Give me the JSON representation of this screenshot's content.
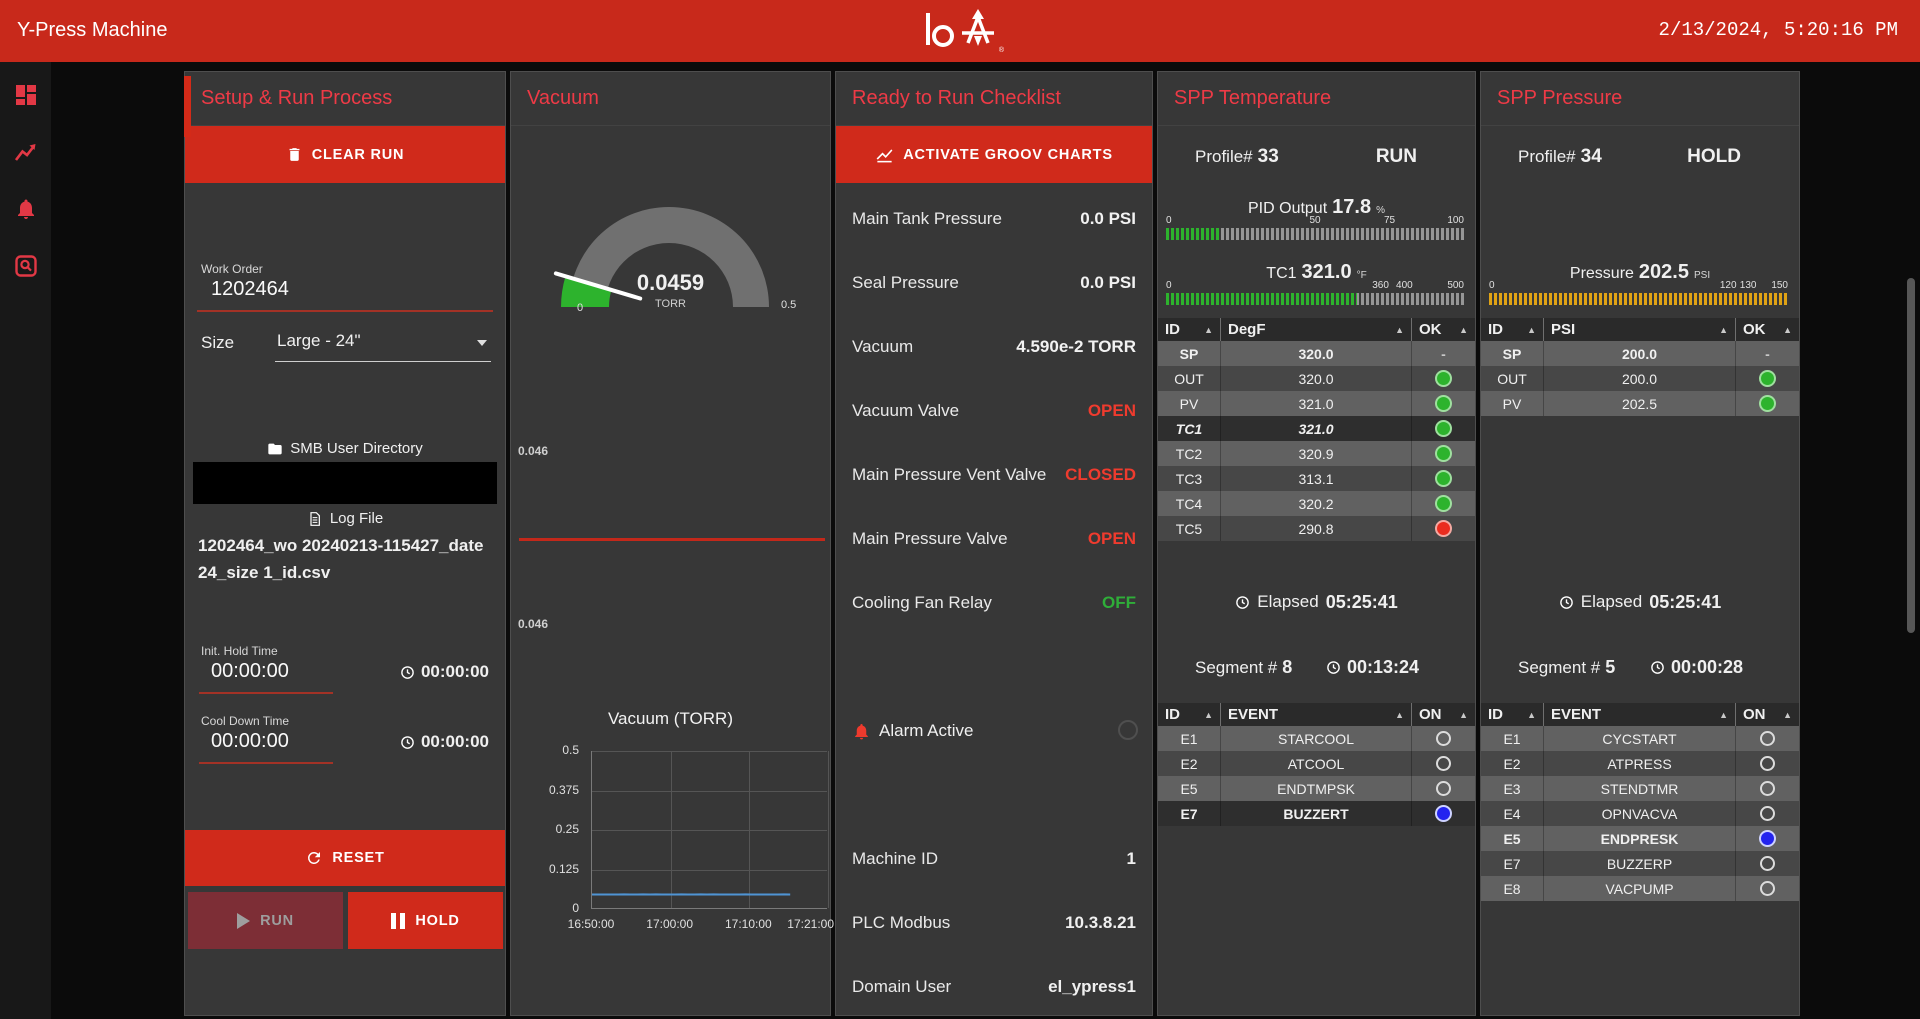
{
  "colors": {
    "header_red": "#c8291b",
    "button_red": "#d02a1b",
    "accent": "#ee3a46",
    "red": "#ef3b2e",
    "green": "#2fae39",
    "white": "#f2f2f2",
    "ok_green": "#2db32d",
    "ok_red": "#ea2c1f",
    "on_blue": "#2323ef",
    "amber": "#dfa215",
    "chart_line": "#4f94d4"
  },
  "header": {
    "title": "Y-Press Machine",
    "logo_text": "Io",
    "reg_mark": "®",
    "time": "2/13/2024, 5:20:16 PM"
  },
  "sidebar": {
    "icons": [
      "pages-grid",
      "trend-chart",
      "alarm-bell",
      "event-log-search"
    ]
  },
  "setup": {
    "title": "Setup & Run Process",
    "clear_run": "CLEAR RUN",
    "work_order_label": "Work Order",
    "work_order": "1202464",
    "size_label": "Size",
    "size_value": "Large - 24\"",
    "smb_label": "SMB User Directory",
    "log_file_label": "Log File",
    "log_file_name": "1202464_wo 20240213-115427_date 24_size 1_id.csv",
    "init_hold_label": "Init. Hold Time",
    "init_hold_value": "00:00:00",
    "init_hold_timer": "00:00:00",
    "cool_down_label": "Cool Down Time",
    "cool_down_value": "00:00:00",
    "cool_down_timer": "00:00:00",
    "reset": "RESET",
    "run": "RUN",
    "hold": "HOLD"
  },
  "vacuum": {
    "title": "Vacuum",
    "gauge": {
      "display": "0.0459",
      "unit": "TORR",
      "value": 0.0459,
      "min_val": 0,
      "max_val": 0.5,
      "min_label": "0",
      "max_label": "0.5"
    },
    "level": {
      "top_label": "0.046",
      "bottom_label": "0.046"
    }
  },
  "chart_data": {
    "type": "line",
    "title": "Vacuum (TORR)",
    "x": [
      "16:50:00",
      "17:00:00",
      "17:10:00",
      "17:21:00"
    ],
    "series": [
      {
        "name": "Vacuum",
        "values": [
          0.046,
          0.046,
          0.046,
          0.0459,
          0.046,
          0.0461,
          0.046,
          0.0459,
          0.0461,
          0.046,
          0.0463,
          0.0458,
          0.046,
          0.046,
          0.0461,
          0.0459,
          0.046,
          0.0463,
          0.0458,
          0.0461,
          0.046,
          0.046,
          0.0459,
          0.046,
          0.0461,
          0.046,
          0.046,
          0.0459,
          0.046,
          0.046,
          0.0461,
          0.046
        ]
      }
    ],
    "ylim": [
      0,
      0.5
    ],
    "yticks": [
      0,
      0.125,
      0.25,
      0.375,
      0.5
    ],
    "grid": true,
    "data_window_frac": 0.84,
    "line_color": "#4f94d4"
  },
  "checklist": {
    "title": "Ready to Run Checklist",
    "button": "ACTIVATE GROOV CHARTS",
    "items": [
      {
        "label": "Main Tank Pressure",
        "value": "0.0 PSI",
        "color": "white"
      },
      {
        "label": "Seal Pressure",
        "value": "0.0 PSI",
        "color": "white"
      },
      {
        "label": "Vacuum",
        "value": "4.590e-2 TORR",
        "color": "white"
      },
      {
        "label": "Vacuum Valve",
        "value": "OPEN",
        "color": "red"
      },
      {
        "label": "Main Pressure Vent Valve",
        "value": "CLOSED",
        "color": "red"
      },
      {
        "label": "Main Pressure Valve",
        "value": "OPEN",
        "color": "red"
      },
      {
        "label": "Cooling Fan Relay",
        "value": "OFF",
        "color": "green"
      }
    ],
    "alarm_label": "Alarm Active",
    "alarm_on": false,
    "info": [
      {
        "label": "Machine ID",
        "value": "1"
      },
      {
        "label": "PLC Modbus",
        "value": "10.3.8.21"
      },
      {
        "label": "Domain User",
        "value": "el_ypress1"
      }
    ]
  },
  "spp_temperature": {
    "title": "SPP Temperature",
    "profile_label": "Profile#",
    "profile": "33",
    "state": "RUN",
    "pid": {
      "label": "PID Output",
      "display": "17.8",
      "unit": "%",
      "value": 17.8,
      "max": 100,
      "ticks": [
        0,
        50,
        75,
        100
      ],
      "color": "green"
    },
    "tc1": {
      "label": "TC1",
      "display": "321.0",
      "unit": "°F",
      "value": 321.0,
      "max": 500,
      "ticks": [
        0,
        360,
        400,
        500
      ],
      "color": "green"
    },
    "table": {
      "headers": [
        "ID",
        "DegF",
        "OK"
      ],
      "rows": [
        {
          "id": "SP",
          "value": "320.0",
          "status": "dash",
          "style": "bold"
        },
        {
          "id": "OUT",
          "value": "320.0",
          "status": "green"
        },
        {
          "id": "PV",
          "value": "321.0",
          "status": "green"
        },
        {
          "id": "TC1",
          "value": "321.0",
          "status": "green",
          "style": "bold italic sel"
        },
        {
          "id": "TC2",
          "value": "320.9",
          "status": "green"
        },
        {
          "id": "TC3",
          "value": "313.1",
          "status": "green"
        },
        {
          "id": "TC4",
          "value": "320.2",
          "status": "green"
        },
        {
          "id": "TC5",
          "value": "290.8",
          "status": "red"
        }
      ]
    },
    "elapsed_label": "Elapsed",
    "elapsed": "05:25:41",
    "segment_label": "Segment #",
    "segment": "8",
    "segment_time": "00:13:24",
    "events": {
      "headers": [
        "ID",
        "EVENT",
        "ON"
      ],
      "rows": [
        {
          "id": "E1",
          "event": "STARCOOL",
          "on": false
        },
        {
          "id": "E2",
          "event": "ATCOOL",
          "on": false
        },
        {
          "id": "E5",
          "event": "ENDTMPSK",
          "on": false
        },
        {
          "id": "E7",
          "event": "BUZZERT",
          "on": true,
          "style": "bold sel"
        }
      ]
    }
  },
  "spp_pressure": {
    "title": "SPP Pressure",
    "profile_label": "Profile#",
    "profile": "34",
    "state": "HOLD",
    "pressure": {
      "label": "Pressure",
      "display": "202.5",
      "unit": "PSI",
      "value": 202.5,
      "max": 150,
      "ticks": [
        0,
        120,
        130,
        150
      ],
      "color": "amber"
    },
    "table": {
      "headers": [
        "ID",
        "PSI",
        "OK"
      ],
      "rows": [
        {
          "id": "SP",
          "value": "200.0",
          "status": "dash",
          "style": "bold"
        },
        {
          "id": "OUT",
          "value": "200.0",
          "status": "green"
        },
        {
          "id": "PV",
          "value": "202.5",
          "status": "green"
        }
      ]
    },
    "elapsed_label": "Elapsed",
    "elapsed": "05:25:41",
    "segment_label": "Segment #",
    "segment": "5",
    "segment_time": "00:00:28",
    "events": {
      "headers": [
        "ID",
        "EVENT",
        "ON"
      ],
      "rows": [
        {
          "id": "E1",
          "event": "CYCSTART",
          "on": false
        },
        {
          "id": "E2",
          "event": "ATPRESS",
          "on": false
        },
        {
          "id": "E3",
          "event": "STENDTMR",
          "on": false
        },
        {
          "id": "E4",
          "event": "OPNVACVA",
          "on": false
        },
        {
          "id": "E5",
          "event": "ENDPRESK",
          "on": true,
          "style": "bold"
        },
        {
          "id": "E7",
          "event": "BUZZERP",
          "on": false
        },
        {
          "id": "E8",
          "event": "VACPUMP",
          "on": false
        }
      ]
    }
  }
}
